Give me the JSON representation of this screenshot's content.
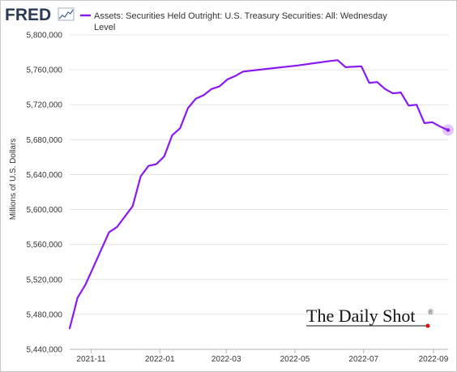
{
  "header": {
    "brand": "FRED",
    "legend_line1": "Assets: Securities Held Outright: U.S. Treasury Securities: All: Wednesday",
    "legend_line2": "Level"
  },
  "watermark": {
    "text": "The Daily Shot",
    "mark": "®"
  },
  "colors": {
    "series": "#8a19f0",
    "grid": "#e4e4e4",
    "text": "#333333",
    "brand": "#2a3a55",
    "watermark_dot": "#d11818"
  },
  "chart_data": {
    "type": "line",
    "title": "",
    "xlabel": "",
    "ylabel": "Millions of U.S. Dollars",
    "xlim": [
      "2021-10-13",
      "2022-09-14"
    ],
    "ylim": [
      5440000,
      5800000
    ],
    "y_ticks": [
      5440000,
      5480000,
      5520000,
      5560000,
      5600000,
      5640000,
      5680000,
      5720000,
      5760000,
      5800000
    ],
    "y_tick_labels": [
      "5,440,000",
      "5,480,000",
      "5,520,000",
      "5,560,000",
      "5,600,000",
      "5,640,000",
      "5,680,000",
      "5,720,000",
      "5,760,000",
      "5,800,000"
    ],
    "x_ticks": [
      "2021-11-01",
      "2022-01-01",
      "2022-03-01",
      "2022-05-01",
      "2022-07-01",
      "2022-09-01"
    ],
    "x_tick_labels": [
      "2021-11",
      "2022-01",
      "2022-03",
      "2022-05",
      "2022-07",
      "2022-09"
    ],
    "grid": "horizontal",
    "legend": "top-left",
    "series": [
      {
        "name": "Assets: Securities Held Outright: U.S. Treasury Securities: All: Wednesday Level",
        "x": [
          "2021-10-13",
          "2021-10-20",
          "2021-10-27",
          "2021-11-03",
          "2021-11-10",
          "2021-11-17",
          "2021-11-24",
          "2021-12-01",
          "2021-12-08",
          "2021-12-15",
          "2021-12-22",
          "2021-12-29",
          "2022-01-05",
          "2022-01-12",
          "2022-01-19",
          "2022-01-26",
          "2022-02-02",
          "2022-02-09",
          "2022-02-16",
          "2022-02-23",
          "2022-03-02",
          "2022-03-09",
          "2022-03-16",
          "2022-04-06",
          "2022-05-04",
          "2022-06-01",
          "2022-06-08",
          "2022-06-15",
          "2022-06-29",
          "2022-07-06",
          "2022-07-13",
          "2022-07-20",
          "2022-07-27",
          "2022-08-03",
          "2022-08-10",
          "2022-08-17",
          "2022-08-24",
          "2022-08-31",
          "2022-09-07",
          "2022-09-14"
        ],
        "y": [
          5464000,
          5499000,
          5514000,
          5534000,
          5554000,
          5574000,
          5580000,
          5592000,
          5604000,
          5638000,
          5650000,
          5652000,
          5661000,
          5685000,
          5693000,
          5716000,
          5727000,
          5731000,
          5738000,
          5741000,
          5749000,
          5753000,
          5758000,
          5761000,
          5765000,
          5770000,
          5771000,
          5763000,
          5764000,
          5745000,
          5746000,
          5738000,
          5733000,
          5734000,
          5719000,
          5720000,
          5699000,
          5700000,
          5695000,
          5691000
        ]
      }
    ]
  }
}
